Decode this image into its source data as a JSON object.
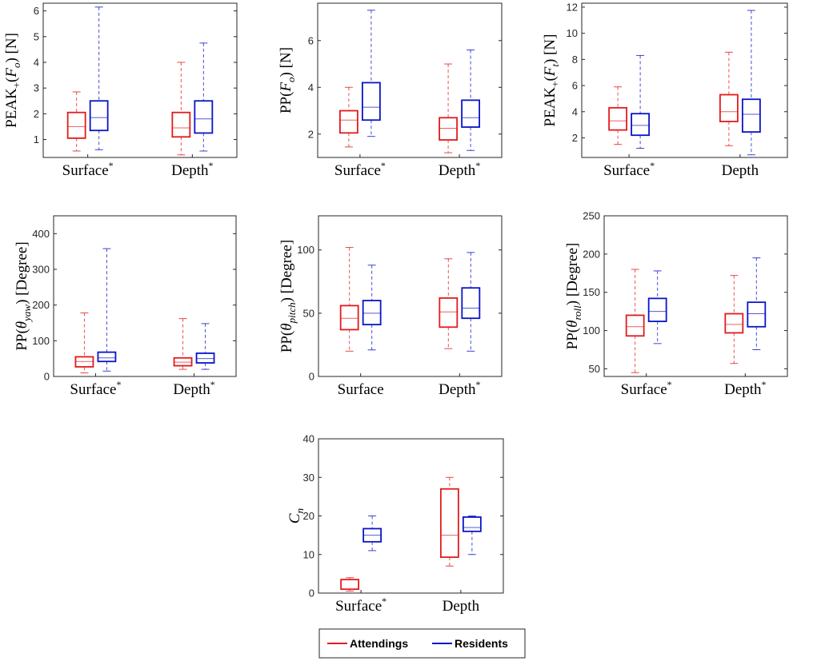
{
  "colors": {
    "attendings": "#e41a1c",
    "residents": "#0a14c8",
    "axis": "#262626"
  },
  "legend": {
    "items": [
      {
        "label": "Attendings",
        "series": "attendings"
      },
      {
        "label": "Residents",
        "series": "residents"
      }
    ]
  },
  "chart_data": [
    {
      "id": "peak-fo",
      "type": "box",
      "ylabel": "PEAK+(Fo) [N]",
      "ylabel_parts": {
        "pre": "PEAK",
        "sub": "+",
        "mid": "(F",
        "sub2": "o",
        "post": ") [N]"
      },
      "ylim": [
        0.3,
        6.3
      ],
      "yticks": [
        "1",
        "2",
        "3",
        "4",
        "5",
        "6"
      ],
      "categories": [
        {
          "label": "Surface",
          "star": "*"
        },
        {
          "label": "Depth",
          "star": "*"
        }
      ],
      "series": [
        {
          "name": "Attendings",
          "color_key": "attendings",
          "boxes": [
            {
              "min": 0.55,
              "q1": 1.05,
              "median": 1.5,
              "q3": 2.05,
              "max": 2.85
            },
            {
              "min": 0.4,
              "q1": 1.1,
              "median": 1.45,
              "q3": 2.05,
              "max": 4.0
            }
          ]
        },
        {
          "name": "Residents",
          "color_key": "residents",
          "boxes": [
            {
              "min": 0.6,
              "q1": 1.35,
              "median": 1.85,
              "q3": 2.5,
              "max": 6.15
            },
            {
              "min": 0.55,
              "q1": 1.25,
              "median": 1.8,
              "q3": 2.5,
              "max": 4.75
            }
          ]
        }
      ]
    },
    {
      "id": "pp-fo",
      "type": "box",
      "ylabel": "PP(Fo) [N]",
      "ylabel_parts": {
        "pre": "PP",
        "sub": "",
        "mid": "(F",
        "sub2": "o",
        "post": ") [N]"
      },
      "ylim": [
        1.0,
        7.6
      ],
      "yticks": [
        "2",
        "4",
        "6"
      ],
      "categories": [
        {
          "label": "Surface",
          "star": "*"
        },
        {
          "label": "Depth",
          "star": "*"
        }
      ],
      "series": [
        {
          "name": "Attendings",
          "color_key": "attendings",
          "boxes": [
            {
              "min": 1.45,
              "q1": 2.05,
              "median": 2.6,
              "q3": 3.0,
              "max": 4.0
            },
            {
              "min": 1.2,
              "q1": 1.75,
              "median": 2.25,
              "q3": 2.7,
              "max": 5.0
            }
          ]
        },
        {
          "name": "Residents",
          "color_key": "residents",
          "boxes": [
            {
              "min": 1.9,
              "q1": 2.6,
              "median": 3.15,
              "q3": 4.2,
              "max": 7.3
            },
            {
              "min": 1.3,
              "q1": 2.3,
              "median": 2.7,
              "q3": 3.45,
              "max": 5.6
            }
          ]
        }
      ]
    },
    {
      "id": "peak-ft",
      "type": "box",
      "ylabel": "PEAK+(Ft) [N]",
      "ylabel_parts": {
        "pre": "PEAK",
        "sub": "+",
        "mid": "(F",
        "sub2": "t",
        "post": ") [N]"
      },
      "ylim": [
        0.5,
        12.3
      ],
      "yticks": [
        "2",
        "4",
        "6",
        "8",
        "10",
        "12"
      ],
      "categories": [
        {
          "label": "Surface",
          "star": "*"
        },
        {
          "label": "Depth",
          "star": ""
        }
      ],
      "series": [
        {
          "name": "Attendings",
          "color_key": "attendings",
          "boxes": [
            {
              "min": 1.5,
              "q1": 2.6,
              "median": 3.3,
              "q3": 4.3,
              "max": 5.9
            },
            {
              "min": 1.4,
              "q1": 3.25,
              "median": 4.0,
              "q3": 5.3,
              "max": 8.55
            }
          ]
        },
        {
          "name": "Residents",
          "color_key": "residents",
          "boxes": [
            {
              "min": 1.2,
              "q1": 2.2,
              "median": 2.95,
              "q3": 3.85,
              "max": 8.3
            },
            {
              "min": 0.7,
              "q1": 2.45,
              "median": 3.8,
              "q3": 4.95,
              "max": 11.75
            }
          ]
        }
      ]
    },
    {
      "id": "pp-yaw",
      "type": "box",
      "ylabel": "PP(θyaw) [Degree]",
      "ylabel_parts": {
        "pre": "PP",
        "sub": "",
        "mid": "(θ",
        "sub2": "yaw",
        "post": ") [Degree]"
      },
      "ylim": [
        0,
        450
      ],
      "yticks": [
        "0",
        "100",
        "200",
        "300",
        "400"
      ],
      "categories": [
        {
          "label": "Surface",
          "star": "*"
        },
        {
          "label": "Depth",
          "star": "*"
        }
      ],
      "series": [
        {
          "name": "Attendings",
          "color_key": "attendings",
          "boxes": [
            {
              "min": 10,
              "q1": 27,
              "median": 42,
              "q3": 55,
              "max": 178
            },
            {
              "min": 20,
              "q1": 30,
              "median": 40,
              "q3": 52,
              "max": 162
            }
          ]
        },
        {
          "name": "Residents",
          "color_key": "residents",
          "boxes": [
            {
              "min": 15,
              "q1": 42,
              "median": 52,
              "q3": 68,
              "max": 358
            },
            {
              "min": 20,
              "q1": 38,
              "median": 50,
              "q3": 65,
              "max": 148
            }
          ]
        }
      ]
    },
    {
      "id": "pp-pitch",
      "type": "box",
      "ylabel": "PP(θpitch) [Degree]",
      "ylabel_parts": {
        "pre": "PP",
        "sub": "",
        "mid": "(θ",
        "sub2": "pitch",
        "post": ") [Degree]"
      },
      "ylim": [
        0,
        127
      ],
      "yticks": [
        "0",
        "50",
        "100"
      ],
      "categories": [
        {
          "label": "Surface",
          "star": ""
        },
        {
          "label": "Depth",
          "star": "*"
        }
      ],
      "series": [
        {
          "name": "Attendings",
          "color_key": "attendings",
          "boxes": [
            {
              "min": 20,
              "q1": 37,
              "median": 46,
              "q3": 56,
              "max": 102
            },
            {
              "min": 22,
              "q1": 39,
              "median": 51,
              "q3": 62,
              "max": 93
            }
          ]
        },
        {
          "name": "Residents",
          "color_key": "residents",
          "boxes": [
            {
              "min": 21,
              "q1": 41,
              "median": 50,
              "q3": 60,
              "max": 88
            },
            {
              "min": 20,
              "q1": 46,
              "median": 54,
              "q3": 70,
              "max": 98
            }
          ]
        }
      ]
    },
    {
      "id": "pp-roll",
      "type": "box",
      "ylabel": "PP(θroll) [Degree]",
      "ylabel_parts": {
        "pre": "PP",
        "sub": "",
        "mid": "(θ",
        "sub2": "roll",
        "post": ") [Degree]"
      },
      "ylim": [
        40,
        250
      ],
      "yticks": [
        "50",
        "100",
        "150",
        "200",
        "250"
      ],
      "categories": [
        {
          "label": "Surface",
          "star": "*"
        },
        {
          "label": "Depth",
          "star": "*"
        }
      ],
      "series": [
        {
          "name": "Attendings",
          "color_key": "attendings",
          "boxes": [
            {
              "min": 45,
              "q1": 93,
              "median": 105,
              "q3": 120,
              "max": 180
            },
            {
              "min": 57,
              "q1": 97,
              "median": 108,
              "q3": 122,
              "max": 172
            }
          ]
        },
        {
          "name": "Residents",
          "color_key": "residents",
          "boxes": [
            {
              "min": 83,
              "q1": 112,
              "median": 125,
              "q3": 142,
              "max": 178
            },
            {
              "min": 75,
              "q1": 105,
              "median": 122,
              "q3": 137,
              "max": 195
            }
          ]
        }
      ]
    },
    {
      "id": "cn",
      "type": "box",
      "ylabel": "Cn",
      "ylabel_parts": {
        "pre": "C",
        "sub": "n",
        "mid": "",
        "sub2": "",
        "post": ""
      },
      "ylim": [
        0,
        40
      ],
      "yticks": [
        "0",
        "10",
        "20",
        "30",
        "40"
      ],
      "categories": [
        {
          "label": "Surface",
          "star": "*"
        },
        {
          "label": "Depth",
          "star": ""
        }
      ],
      "series": [
        {
          "name": "Attendings",
          "color_key": "attendings",
          "boxes": [
            {
              "min": 0.5,
              "q1": 1,
              "median": 1,
              "q3": 3.5,
              "max": 4
            },
            {
              "min": 7,
              "q1": 9.3,
              "median": 15,
              "q3": 27,
              "max": 30
            }
          ]
        },
        {
          "name": "Residents",
          "color_key": "residents",
          "boxes": [
            {
              "min": 11,
              "q1": 13.3,
              "median": 15,
              "q3": 16.7,
              "max": 20
            },
            {
              "min": 10,
              "q1": 16,
              "median": 17,
              "q3": 19.7,
              "max": 20
            }
          ]
        }
      ]
    }
  ]
}
